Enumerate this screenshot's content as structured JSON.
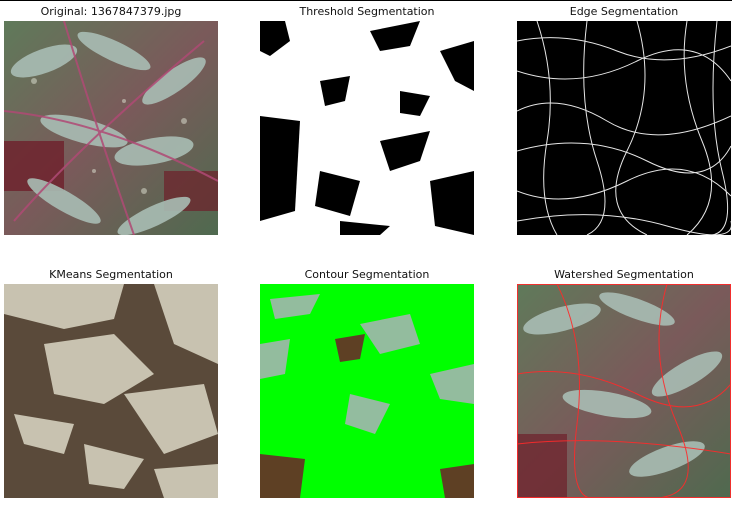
{
  "figure": {
    "panels": [
      {
        "title": "Original: 1367847379.jpg"
      },
      {
        "title": "Threshold Segmentation"
      },
      {
        "title": "Edge Segmentation"
      },
      {
        "title": "KMeans Segmentation"
      },
      {
        "title": "Contour Segmentation"
      },
      {
        "title": "Watershed Segmentation"
      }
    ]
  },
  "colors": {
    "leaf": "#8fa79d",
    "leaf_light": "#c9d6cf",
    "stem": "#8a3a5a",
    "soil_red": "#6e1f2a",
    "kmeans_dark": "#5a4a3a",
    "kmeans_light": "#c8c2b0",
    "contour_green": "#00ff00",
    "watershed_line": "#ff2a2a"
  }
}
